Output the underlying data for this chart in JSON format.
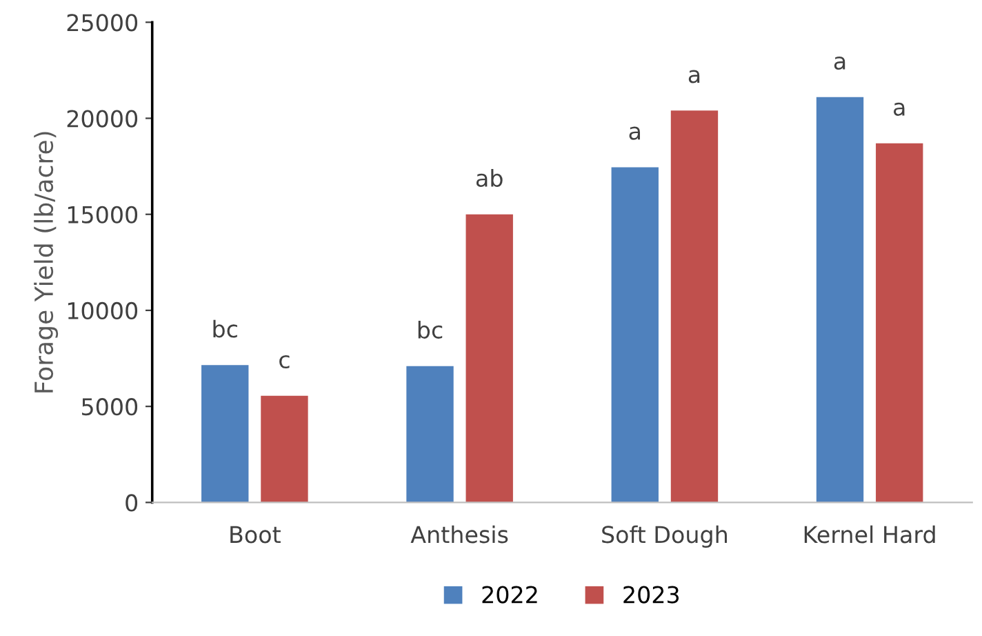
{
  "chart_data": {
    "type": "bar",
    "ylabel": "Forage Yield (lb/acre)",
    "categories": [
      "Boot",
      "Anthesis",
      "Soft Dough",
      "Kernel Hard"
    ],
    "series": [
      {
        "name": "2022",
        "color": "#4f81bd",
        "values": [
          7150,
          7100,
          17450,
          21100
        ],
        "value_labels": [
          "bc",
          "bc",
          "a",
          "a"
        ]
      },
      {
        "name": "2023",
        "color": "#c0504d",
        "values": [
          5550,
          15000,
          20400,
          18700
        ],
        "value_labels": [
          "c",
          "ab",
          "a",
          "a"
        ]
      }
    ],
    "ylim": [
      0,
      25000
    ],
    "yticks": [
      0,
      5000,
      10000,
      15000,
      20000,
      25000
    ],
    "grid": false,
    "legend": "bottom"
  }
}
